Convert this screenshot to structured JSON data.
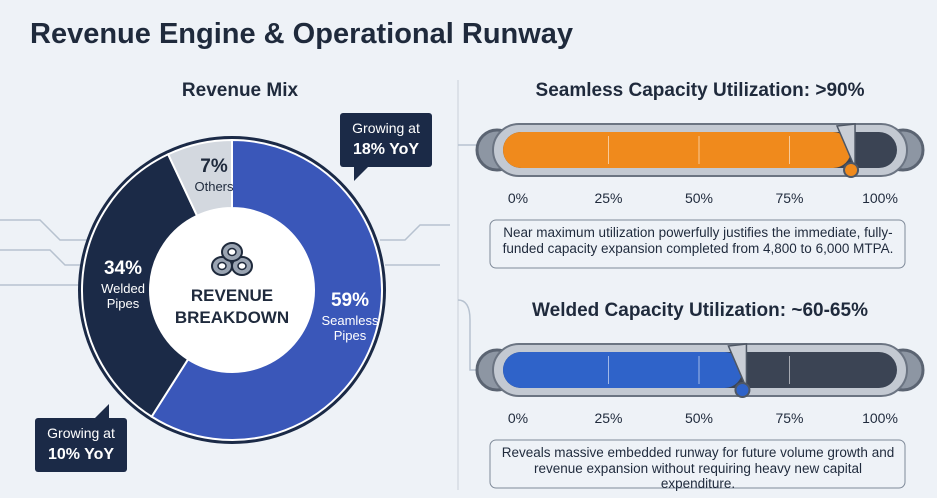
{
  "title": "Revenue Engine & Operational Runway",
  "chart_data": [
    {
      "type": "donut",
      "title": "Revenue Mix",
      "center_label": [
        "REVENUE",
        "BREAKDOWN"
      ],
      "categories": [
        "Seamless Pipes",
        "Welded Pipes",
        "Others"
      ],
      "values": [
        59,
        34,
        7
      ],
      "value_labels": [
        "59%",
        "34%",
        "7%"
      ],
      "colors": [
        "#3a57b9",
        "#1b2a47",
        "#d3d8df"
      ],
      "callouts": [
        [
          "Growing at",
          "18% YoY"
        ],
        [
          "Growing at",
          "10% YoY"
        ]
      ]
    },
    {
      "type": "gauge",
      "title": "Seamless Capacity Utilization: >90%",
      "value": 92,
      "color": "#f08a1c",
      "xlim": [
        0,
        100
      ],
      "xticks": [
        {
          "value": 0,
          "label": "0%"
        },
        {
          "value": 25,
          "label": "25%"
        },
        {
          "value": 50,
          "label": "50%"
        },
        {
          "value": 75,
          "label": "75%"
        },
        {
          "value": 100,
          "label": "100%"
        }
      ],
      "caption": "Near maximum utilization powerfully justifies the immediate, fully-funded capacity expansion completed from 4,800 to 6,000 MTPA."
    },
    {
      "type": "gauge",
      "title": "Welded Capacity Utilization: ~60-65%",
      "value": 62,
      "color": "#2f63c9",
      "xlim": [
        0,
        100
      ],
      "xticks": [
        {
          "value": 0,
          "label": "0%"
        },
        {
          "value": 25,
          "label": "25%"
        },
        {
          "value": 50,
          "label": "50%"
        },
        {
          "value": 75,
          "label": "75%"
        },
        {
          "value": 100,
          "label": "100%"
        }
      ],
      "caption": "Reveals massive embedded runway for future volume growth and revenue expansion without requiring heavy new capital expenditure."
    }
  ]
}
